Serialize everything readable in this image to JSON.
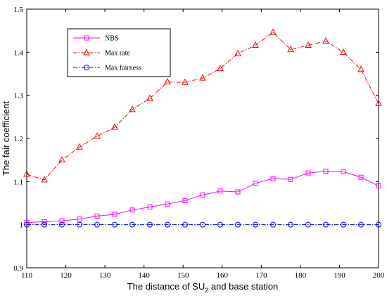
{
  "chart_data": {
    "type": "line",
    "xlabel_prefix": "The distance of SU",
    "xlabel_sub": "2",
    "xlabel_suffix": " and base station",
    "ylabel": "The fair coefficient",
    "xlim": [
      110,
      200
    ],
    "ylim": [
      0.9,
      1.5
    ],
    "xticks": [
      110,
      120,
      130,
      140,
      150,
      160,
      170,
      180,
      190,
      200
    ],
    "yticks": [
      0.9,
      1,
      1.1,
      1.2,
      1.3,
      1.4,
      1.5
    ],
    "ytick_labels": [
      "0.9",
      "1",
      "1.1",
      "1.2",
      "1.3",
      "1.4",
      "1.5"
    ],
    "grid": false,
    "legend_position": "top-left",
    "x": [
      110,
      114.5,
      119,
      123.5,
      128,
      132.5,
      137,
      141.5,
      146,
      150.5,
      155,
      159.5,
      164,
      168.5,
      173,
      177.5,
      182,
      186.5,
      191,
      195.5,
      200
    ],
    "series": [
      {
        "name": "NBS",
        "color": "#ff00ff",
        "marker": "square",
        "dash": "solid",
        "values": [
          1.005,
          1.007,
          1.009,
          1.013,
          1.02,
          1.024,
          1.034,
          1.041,
          1.048,
          1.056,
          1.069,
          1.078,
          1.076,
          1.096,
          1.107,
          1.105,
          1.12,
          1.124,
          1.123,
          1.11,
          1.09
        ]
      },
      {
        "name": "Max rate",
        "color": "#ff0000",
        "marker": "triangle",
        "dash": "dashdot",
        "values": [
          1.117,
          1.104,
          1.15,
          1.18,
          1.205,
          1.226,
          1.267,
          1.293,
          1.331,
          1.33,
          1.34,
          1.362,
          1.397,
          1.416,
          1.446,
          1.406,
          1.416,
          1.426,
          1.4,
          1.36,
          1.281
        ]
      },
      {
        "name": "Max fairness",
        "color": "#0000ff",
        "marker": "circle",
        "dash": "dashdot",
        "values": [
          1,
          1,
          1,
          1,
          1,
          1,
          1,
          1,
          1,
          1,
          1,
          1,
          1,
          1,
          1,
          1,
          1,
          1,
          1,
          1,
          1
        ]
      }
    ]
  }
}
